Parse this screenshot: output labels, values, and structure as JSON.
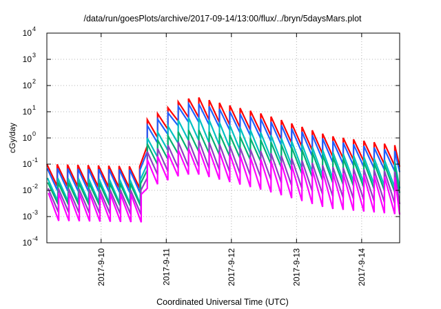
{
  "chart_data": {
    "type": "line",
    "title": "/data/run/goesPlots/archive/2017-09-14/13:00/flux/../bryn/5daysMars.plot",
    "xlabel": "Coordinated Universal Time (UTC)",
    "ylabel": "cGy/day",
    "y_scale": "log",
    "ylim": [
      "1e-4",
      "1e4"
    ],
    "xlim": [
      "2017-09-09 04:00",
      "2017-09-14 14:00"
    ],
    "grid": true,
    "x_ticks": [
      "2017-9-10",
      "2017-9-11",
      "2017-9-12",
      "2017-9-13",
      "2017-9-14"
    ],
    "y_ticks": [
      {
        "base": "10",
        "exp": "-4"
      },
      {
        "base": "10",
        "exp": "-3"
      },
      {
        "base": "10",
        "exp": "-2"
      },
      {
        "base": "10",
        "exp": "-1"
      },
      {
        "base": "10",
        "exp": "0"
      },
      {
        "base": "10",
        "exp": "1"
      },
      {
        "base": "10",
        "exp": "2"
      },
      {
        "base": "10",
        "exp": "3"
      },
      {
        "base": "10",
        "exp": "4"
      }
    ],
    "sawtooth_period_hours": 3.8,
    "event_onset": "2017-09-10 17:00",
    "series": [
      {
        "color": "#ff0000",
        "envelope": {
          "x": [
            "2017-09-09 04:00",
            "2017-09-10 16:30",
            "2017-09-10 17:00",
            "2017-09-11 06:00",
            "2017-09-11 12:00",
            "2017-09-12 12:00",
            "2017-09-13 12:00",
            "2017-09-14 14:00"
          ],
          "peak": [
            0.1,
            0.08,
            5,
            30,
            35,
            8,
            1.2,
            0.5
          ],
          "trough": [
            0.015,
            0.012,
            0.5,
            6,
            6,
            1.5,
            0.2,
            0.08
          ]
        }
      },
      {
        "color": "#1e5fff",
        "envelope": {
          "x": [
            "2017-09-09 04:00",
            "2017-09-10 16:30",
            "2017-09-10 17:00",
            "2017-09-11 06:00",
            "2017-09-11 12:00",
            "2017-09-12 12:00",
            "2017-09-13 12:00",
            "2017-09-14 14:00"
          ],
          "peak": [
            0.07,
            0.06,
            3,
            20,
            20,
            5,
            0.8,
            0.3
          ],
          "trough": [
            0.01,
            0.008,
            0.3,
            4,
            4,
            0.9,
            0.12,
            0.05
          ]
        }
      },
      {
        "color": "#00c0c0",
        "envelope": {
          "x": [
            "2017-09-09 04:00",
            "2017-09-10 16:30",
            "2017-09-10 17:00",
            "2017-09-11 06:00",
            "2017-09-11 12:00",
            "2017-09-12 12:00",
            "2017-09-13 12:00",
            "2017-09-14 14:00"
          ],
          "peak": [
            0.03,
            0.025,
            1,
            6,
            6,
            1.5,
            0.3,
            0.12
          ],
          "trough": [
            0.004,
            0.003,
            0.1,
            0.8,
            0.8,
            0.2,
            0.03,
            0.012
          ]
        }
      },
      {
        "color": "#00b070",
        "envelope": {
          "x": [
            "2017-09-09 04:00",
            "2017-09-10 16:30",
            "2017-09-10 17:00",
            "2017-09-11 06:00",
            "2017-09-11 12:00",
            "2017-09-12 12:00",
            "2017-09-13 12:00",
            "2017-09-14 14:00"
          ],
          "peak": [
            0.02,
            0.018,
            0.6,
            2,
            2,
            0.8,
            0.2,
            0.08
          ],
          "trough": [
            0.003,
            0.0025,
            0.06,
            0.3,
            0.3,
            0.12,
            0.02,
            0.008
          ]
        }
      },
      {
        "color": "#9040c0",
        "envelope": {
          "x": [
            "2017-09-09 04:00",
            "2017-09-10 16:30",
            "2017-09-10 17:00",
            "2017-09-11 06:00",
            "2017-09-11 12:00",
            "2017-09-12 12:00",
            "2017-09-13 12:00",
            "2017-09-14 14:00"
          ],
          "peak": [
            0.012,
            0.01,
            0.3,
            0.8,
            0.8,
            0.3,
            0.08,
            0.05
          ],
          "trough": [
            0.0015,
            0.0012,
            0.03,
            0.08,
            0.08,
            0.03,
            0.006,
            0.003
          ]
        }
      },
      {
        "color": "#ff00ff",
        "envelope": {
          "x": [
            "2017-09-09 04:00",
            "2017-09-10 16:30",
            "2017-09-10 17:00",
            "2017-09-11 06:00",
            "2017-09-11 12:00",
            "2017-09-12 12:00",
            "2017-09-13 12:00",
            "2017-09-14 14:00"
          ],
          "peak": [
            0.008,
            0.007,
            0.15,
            0.4,
            0.4,
            0.15,
            0.05,
            0.03
          ],
          "trough": [
            0.0007,
            0.0006,
            0.012,
            0.04,
            0.04,
            0.01,
            0.002,
            0.0012
          ]
        }
      }
    ]
  }
}
